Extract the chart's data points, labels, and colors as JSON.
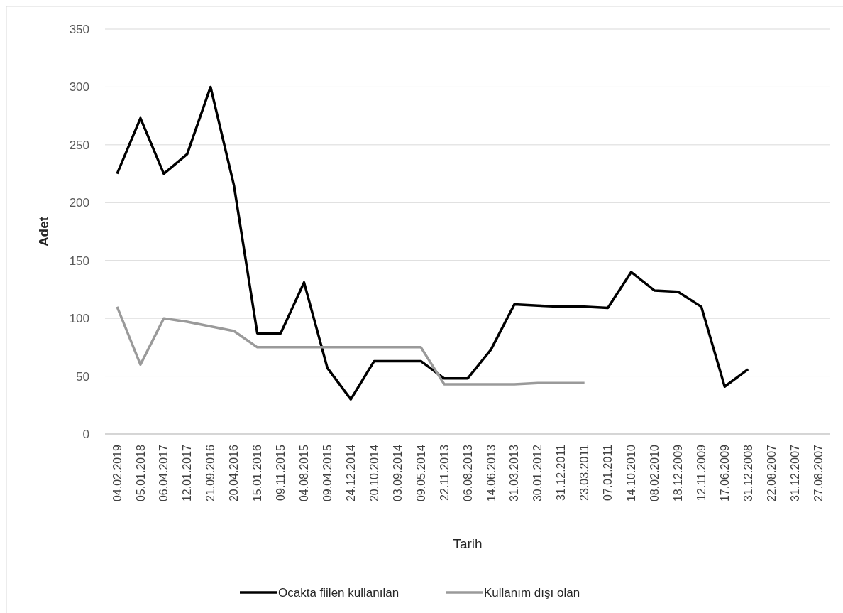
{
  "chart_data": {
    "type": "line",
    "xlabel": "Tarih",
    "ylabel": "Adet",
    "categories": [
      "04.02.2019",
      "05.01.2018",
      "06.04.2017",
      "12.01.2017",
      "21.09.2016",
      "20.04.2016",
      "15.01.2016",
      "09.11.2015",
      "04.08.2015",
      "09.04.2015",
      "24.12.2014",
      "20.10.2014",
      "03.09.2014",
      "09.05.2014",
      "22.11.2013",
      "06.08.2013",
      "14.06.2013",
      "31.03.2013",
      "30.01.2012",
      "31.12.2011",
      "23.03.2011",
      "07.01.2011",
      "14.10.2010",
      "08.02.2010",
      "18.12.2009",
      "12.11.2009",
      "17.06.2009",
      "31.12.2008",
      "22.08.2007",
      "31.12.2007",
      "27.08.2007"
    ],
    "series": [
      {
        "name": "Ocakta fiilen kullanılan",
        "color": "#000000",
        "values": [
          225,
          273,
          225,
          242,
          300,
          215,
          87,
          87,
          131,
          57,
          30,
          63,
          63,
          63,
          48,
          48,
          73,
          112,
          111,
          110,
          110,
          109,
          140,
          124,
          123,
          110,
          41,
          56,
          null,
          null,
          null
        ]
      },
      {
        "name": "Kullanım dışı olan",
        "color": "#9a9a9a",
        "values": [
          110,
          60,
          100,
          97,
          93,
          89,
          75,
          75,
          75,
          75,
          75,
          75,
          75,
          75,
          43,
          43,
          43,
          43,
          44,
          44,
          44,
          null,
          null,
          null,
          null,
          null,
          null,
          null,
          null,
          null,
          null
        ]
      }
    ],
    "ylim": [
      0,
      350
    ],
    "yticks": [
      0,
      50,
      100,
      150,
      200,
      250,
      300,
      350
    ],
    "grid": "y",
    "legend": "bottom",
    "marker": "none",
    "line_style": "solid"
  }
}
